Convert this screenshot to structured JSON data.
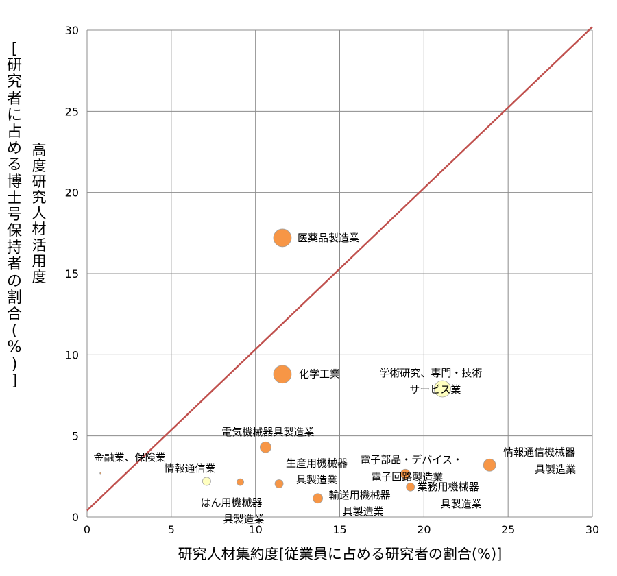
{
  "chart_data": {
    "type": "scatter",
    "xlabel": "研究人材集約度[従業員に占める研究者の割合(%)]",
    "ylabel_main": "高度研究人材活用度",
    "ylabel_sub": "[研究者に占める博士号保持者の割合(%)]",
    "xlim": [
      0,
      30
    ],
    "ylim": [
      0,
      30
    ],
    "xticks": [
      "0",
      "5",
      "10",
      "15",
      "20",
      "25",
      "30"
    ],
    "yticks": [
      "0",
      "5",
      "10",
      "15",
      "20",
      "25",
      "30"
    ],
    "grid": true,
    "reference_line": {
      "x": [
        0,
        30
      ],
      "y": [
        0.4,
        30.2
      ],
      "color": "#c0504d"
    },
    "points": [
      {
        "label": "医薬品製造業",
        "x": 11.6,
        "y": 17.2,
        "size": 13,
        "color": "#f79646"
      },
      {
        "label": "化学工業",
        "x": 11.6,
        "y": 8.8,
        "size": 13,
        "color": "#f79646"
      },
      {
        "label": "学術研究、専門・技術サービス業",
        "x": 21.1,
        "y": 7.9,
        "size": 12,
        "color": "#ffffc0"
      },
      {
        "label": "電気機械器具製造業",
        "x": 10.6,
        "y": 4.3,
        "size": 8,
        "color": "#f79646"
      },
      {
        "label": "電子部品・デバイス・電子回路製造業",
        "x": 18.9,
        "y": 2.65,
        "size": 7,
        "color": "#f79646"
      },
      {
        "label": "情報通信機械器具製造業",
        "x": 23.9,
        "y": 3.2,
        "size": 9,
        "color": "#f79646"
      },
      {
        "label": "金融業、保険業",
        "x": 0.8,
        "y": 2.7,
        "size": 1,
        "color": "#f79646"
      },
      {
        "label": "情報通信業",
        "x": 7.1,
        "y": 2.2,
        "size": 6,
        "color": "#ffffc0"
      },
      {
        "label": "はん用機械器具製造業",
        "x": 9.1,
        "y": 2.15,
        "size": 5,
        "color": "#f79646"
      },
      {
        "label": "生産用機械器具製造業",
        "x": 11.4,
        "y": 2.05,
        "size": 6,
        "color": "#f79646"
      },
      {
        "label": "輸送用機械器具製造業",
        "x": 13.7,
        "y": 1.15,
        "size": 7,
        "color": "#f79646"
      },
      {
        "label": "業務用機械器具製造業",
        "x": 19.2,
        "y": 1.85,
        "size": 6,
        "color": "#f79646"
      }
    ]
  }
}
